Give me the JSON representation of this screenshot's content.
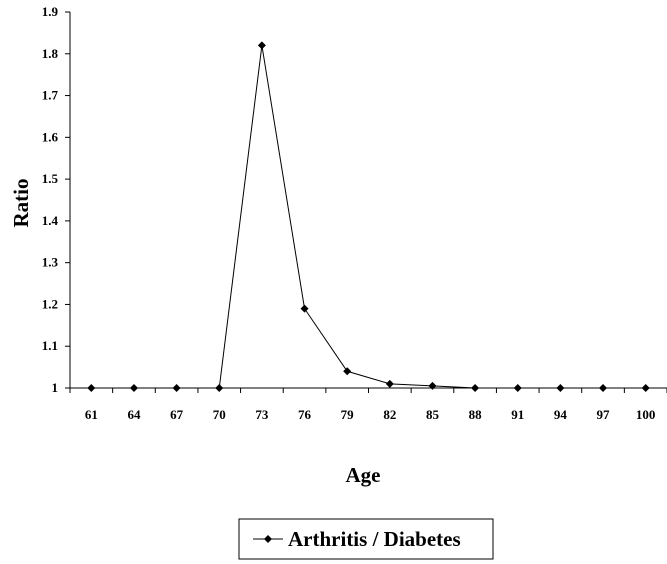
{
  "chart_data": {
    "type": "line",
    "title": "",
    "xlabel": "Age",
    "ylabel": "Ratio",
    "x": [
      "61",
      "64",
      "67",
      "70",
      "73",
      "76",
      "79",
      "82",
      "85",
      "88",
      "91",
      "94",
      "97",
      "100"
    ],
    "ylim": [
      1,
      1.9
    ],
    "yticks": [
      "1",
      "1.1",
      "1.2",
      "1.3",
      "1.4",
      "1.5",
      "1.6",
      "1.7",
      "1.8",
      "1.9"
    ],
    "grid": false,
    "legend_position": "bottom-center",
    "series": [
      {
        "name": "Arthritis / Diabetes",
        "marker": "diamond",
        "color": "#000000",
        "values": [
          1,
          1,
          1,
          1,
          1.82,
          1.19,
          1.04,
          1.01,
          1.005,
          1,
          1,
          1,
          1,
          1
        ]
      }
    ]
  }
}
